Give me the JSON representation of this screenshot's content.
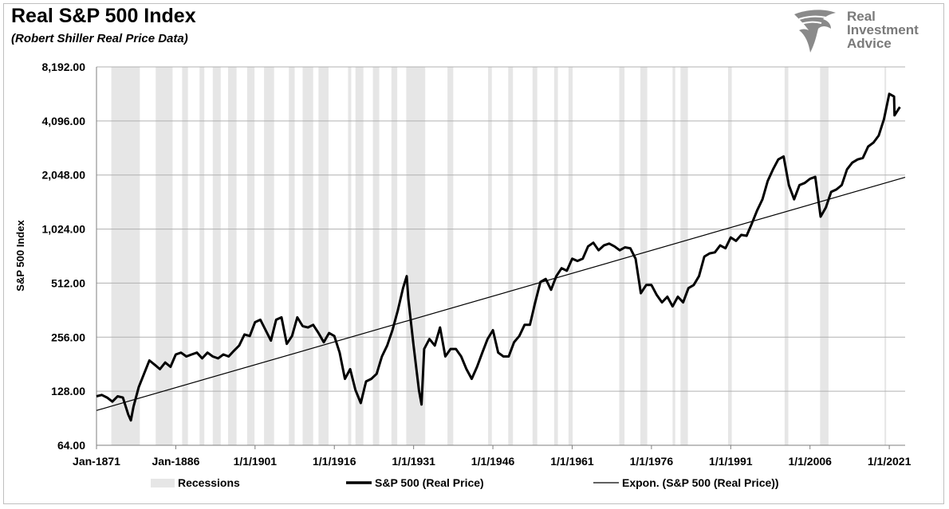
{
  "header": {
    "title": "Real S&P 500 Index",
    "subtitle": "(Robert Shiller Real Price Data)"
  },
  "logo": {
    "lines": [
      "Real",
      "Investment",
      "Advice"
    ]
  },
  "colors": {
    "recession": "#e6e6e6",
    "series": "#000000",
    "trend": "#000000",
    "grid": "#b0b0b0"
  },
  "chart_data": {
    "type": "line",
    "title": "Real S&P 500 Index",
    "subtitle": "(Robert Shiller Real Price Data)",
    "ylabel": "S&P 500 Index",
    "xlabel": "",
    "y_scale": "log2",
    "ylim": [
      64,
      8192
    ],
    "xlim": [
      1871.0,
      2024.0
    ],
    "yticks": [
      64,
      128,
      256,
      512,
      1024,
      2048,
      4096,
      8192
    ],
    "ytick_labels": [
      "64.00",
      "128.00",
      "256.00",
      "512.00",
      "1,024.00",
      "2,048.00",
      "4,096.00",
      "8,192.00"
    ],
    "xticks": [
      1871,
      1886,
      1901,
      1916,
      1931,
      1946,
      1961,
      1976,
      1991,
      2006,
      2021
    ],
    "xtick_labels": [
      "Jan-1871",
      "Jan-1886",
      "1/1/1901",
      "1/1/1916",
      "1/1/1931",
      "1/1/1946",
      "1/1/1961",
      "1/1/1976",
      "1/1/1991",
      "1/1/2006",
      "1/1/2021"
    ],
    "grid": true,
    "legend_position": "bottom",
    "legend": [
      "Recessions",
      "S&P 500 (Real Price)",
      "Expon. (S&P 500 (Real Price))"
    ],
    "recessions": [
      [
        1873.8,
        1879.2
      ],
      [
        1882.2,
        1885.4
      ],
      [
        1887.2,
        1888.3
      ],
      [
        1890.5,
        1891.4
      ],
      [
        1893.0,
        1894.5
      ],
      [
        1895.9,
        1897.5
      ],
      [
        1899.5,
        1900.9
      ],
      [
        1902.7,
        1904.6
      ],
      [
        1907.4,
        1908.5
      ],
      [
        1910.0,
        1912.0
      ],
      [
        1913.0,
        1914.9
      ],
      [
        1918.6,
        1919.2
      ],
      [
        1920.0,
        1921.5
      ],
      [
        1923.3,
        1924.5
      ],
      [
        1926.8,
        1927.9
      ],
      [
        1929.6,
        1933.2
      ],
      [
        1937.4,
        1938.5
      ],
      [
        1945.1,
        1945.8
      ],
      [
        1948.9,
        1949.8
      ],
      [
        1953.5,
        1954.4
      ],
      [
        1957.6,
        1958.3
      ],
      [
        1960.3,
        1961.1
      ],
      [
        1969.9,
        1970.9
      ],
      [
        1973.9,
        1975.2
      ],
      [
        1980.0,
        1980.5
      ],
      [
        1981.5,
        1982.9
      ],
      [
        1990.5,
        1991.2
      ],
      [
        2001.2,
        2001.9
      ],
      [
        2007.9,
        2009.5
      ],
      [
        2020.1,
        2020.4
      ]
    ],
    "series": [
      {
        "name": "S&P 500 (Real Price)",
        "x": [
          1871,
          1872,
          1873,
          1874,
          1875,
          1876,
          1877,
          1877.5,
          1878,
          1879,
          1880,
          1881,
          1882,
          1883,
          1884,
          1885,
          1886,
          1887,
          1888,
          1889,
          1890,
          1891,
          1892,
          1893,
          1894,
          1895,
          1896,
          1897,
          1898,
          1899,
          1900,
          1901,
          1902,
          1903,
          1904,
          1905,
          1906,
          1907,
          1908,
          1909,
          1910,
          1911,
          1912,
          1913,
          1914,
          1915,
          1916,
          1917,
          1918,
          1919,
          1920,
          1921,
          1922,
          1923,
          1924,
          1925,
          1926,
          1927,
          1928,
          1929,
          1929.7,
          1930,
          1931,
          1932,
          1932.5,
          1933,
          1934,
          1935,
          1936,
          1937,
          1938,
          1939,
          1940,
          1941,
          1942,
          1943,
          1944,
          1945,
          1946,
          1947,
          1948,
          1949,
          1950,
          1951,
          1952,
          1953,
          1954,
          1955,
          1956,
          1957,
          1958,
          1959,
          1960,
          1961,
          1962,
          1963,
          1964,
          1965,
          1966,
          1967,
          1968,
          1969,
          1970,
          1971,
          1972,
          1973,
          1974,
          1975,
          1976,
          1977,
          1978,
          1979,
          1980,
          1981,
          1982,
          1983,
          1984,
          1985,
          1986,
          1987,
          1988,
          1989,
          1990,
          1991,
          1992,
          1993,
          1994,
          1995,
          1996,
          1997,
          1998,
          1999,
          2000,
          2001,
          2002,
          2003,
          2004,
          2005,
          2006,
          2007,
          2008,
          2009,
          2010,
          2011,
          2012,
          2013,
          2014,
          2015,
          2016,
          2017,
          2018,
          2019,
          2020,
          2021,
          2021.9,
          2022,
          2023
        ],
        "values": [
          120,
          122,
          118,
          112,
          120,
          118,
          95,
          88,
          105,
          135,
          160,
          190,
          180,
          170,
          185,
          175,
          205,
          210,
          200,
          205,
          210,
          195,
          210,
          200,
          195,
          205,
          200,
          215,
          230,
          265,
          260,
          310,
          320,
          280,
          245,
          320,
          330,
          235,
          260,
          330,
          295,
          290,
          300,
          270,
          240,
          270,
          260,
          210,
          150,
          170,
          130,
          110,
          145,
          150,
          160,
          200,
          230,
          280,
          360,
          480,
          560,
          420,
          230,
          130,
          108,
          220,
          250,
          230,
          290,
          200,
          220,
          220,
          200,
          170,
          150,
          175,
          210,
          250,
          280,
          210,
          200,
          200,
          240,
          260,
          300,
          300,
          400,
          520,
          540,
          470,
          560,
          620,
          600,
          700,
          680,
          700,
          820,
          860,
          780,
          830,
          850,
          820,
          780,
          810,
          800,
          700,
          450,
          500,
          500,
          440,
          400,
          430,
          380,
          430,
          400,
          480,
          500,
          560,
          720,
          750,
          760,
          830,
          800,
          920,
          880,
          950,
          940,
          1100,
          1300,
          1500,
          1900,
          2200,
          2500,
          2600,
          1800,
          1500,
          1800,
          1850,
          1950,
          2000,
          1200,
          1350,
          1650,
          1700,
          1800,
          2200,
          2400,
          2500,
          2550,
          2950,
          3100,
          3400,
          4200,
          5800,
          5600,
          4400,
          4900
        ]
      },
      {
        "name": "Expon. (S&P 500 (Real Price))",
        "x": [
          1871,
          2024
        ],
        "values": [
          100,
          1990
        ]
      }
    ]
  }
}
